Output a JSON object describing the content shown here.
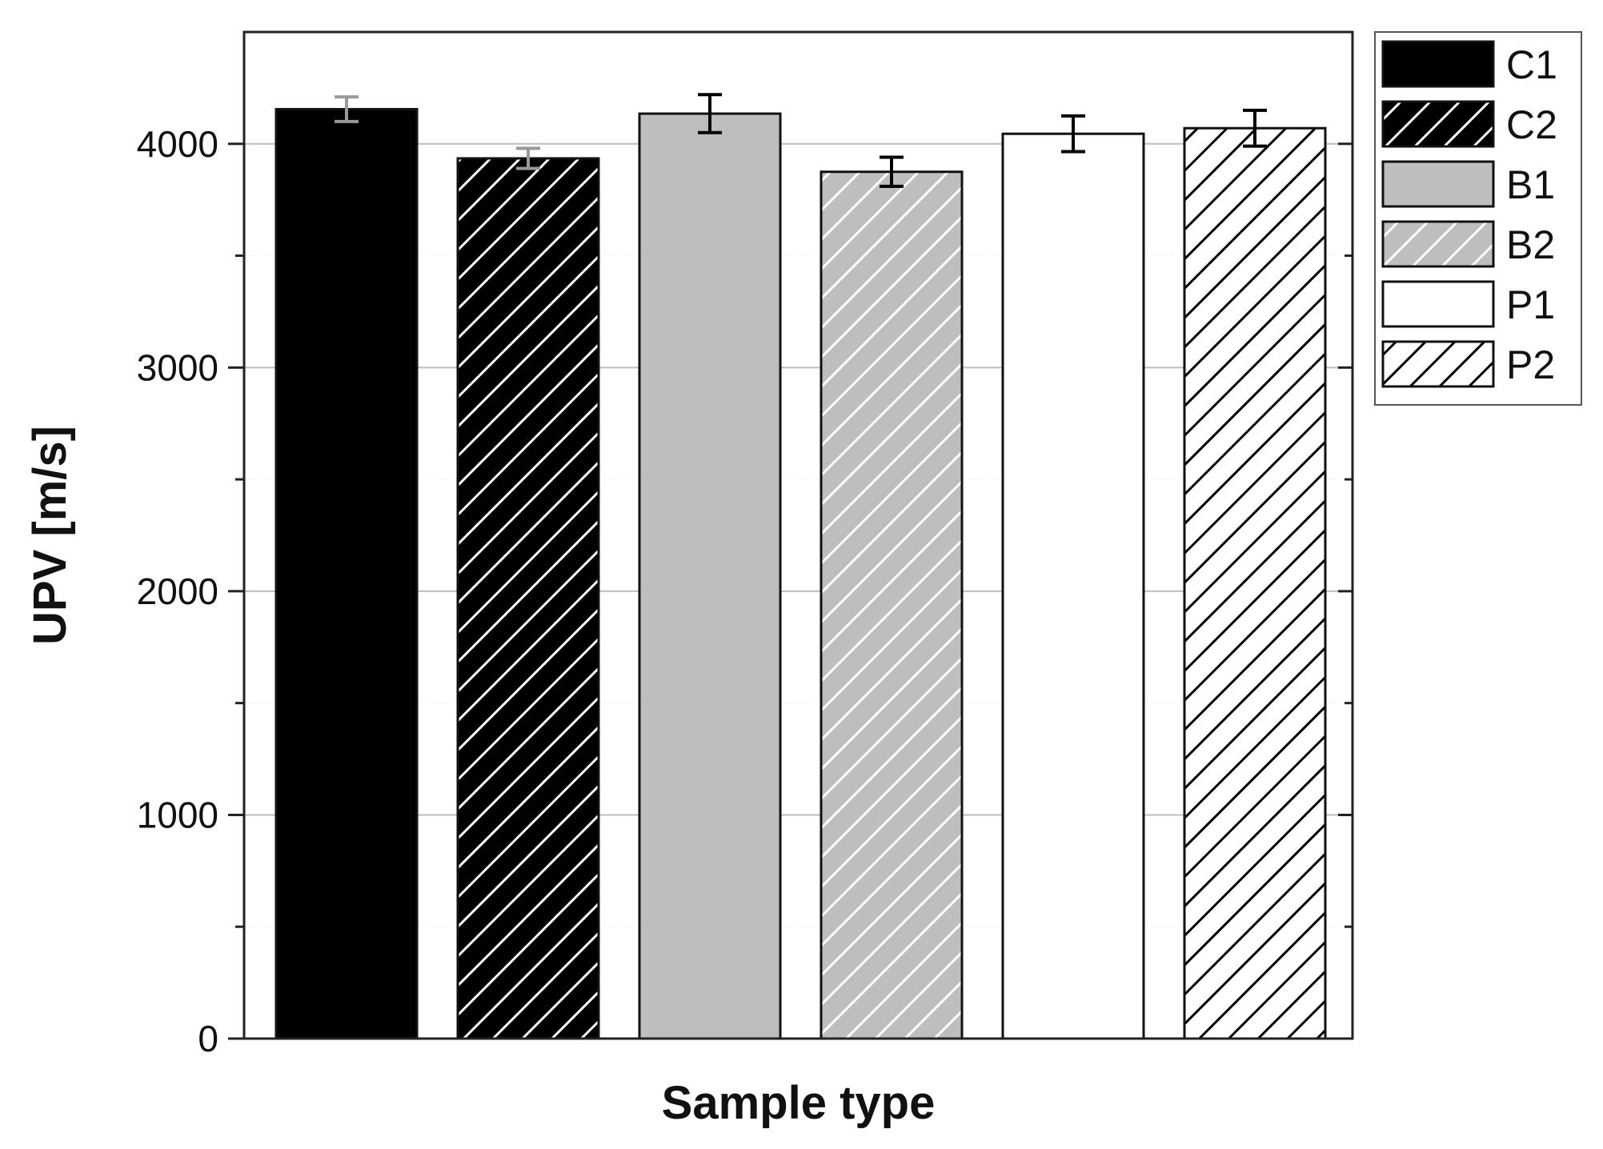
{
  "chart_data": {
    "type": "bar",
    "title": "",
    "xlabel": "Sample type",
    "ylabel": "UPV [m/s]",
    "ylim": [
      0,
      4500
    ],
    "yticks": [
      0,
      1000,
      2000,
      3000,
      4000
    ],
    "grid": true,
    "legend_position": "right",
    "categories": [
      "C1",
      "C2",
      "B1",
      "B2",
      "P1",
      "P2"
    ],
    "values": [
      4155,
      3935,
      4135,
      3875,
      4045,
      4070
    ],
    "errors": [
      55,
      45,
      85,
      65,
      80,
      80
    ],
    "series": [
      {
        "name": "C1",
        "value": 4155,
        "error": 55,
        "fill": "#000000",
        "hatch": false,
        "hatch_color": "",
        "error_color": "#999999"
      },
      {
        "name": "C2",
        "value": 3935,
        "error": 45,
        "fill": "#000000",
        "hatch": true,
        "hatch_color": "#ffffff",
        "error_color": "#999999"
      },
      {
        "name": "B1",
        "value": 4135,
        "error": 85,
        "fill": "#bebebe",
        "hatch": false,
        "hatch_color": "",
        "error_color": "#000000"
      },
      {
        "name": "B2",
        "value": 3875,
        "error": 65,
        "fill": "#bebebe",
        "hatch": true,
        "hatch_color": "#ffffff",
        "error_color": "#000000"
      },
      {
        "name": "P1",
        "value": 4045,
        "error": 80,
        "fill": "#ffffff",
        "hatch": false,
        "hatch_color": "",
        "error_color": "#000000"
      },
      {
        "name": "P2",
        "value": 4070,
        "error": 80,
        "fill": "#ffffff",
        "hatch": true,
        "hatch_color": "#000000",
        "error_color": "#000000"
      }
    ]
  }
}
